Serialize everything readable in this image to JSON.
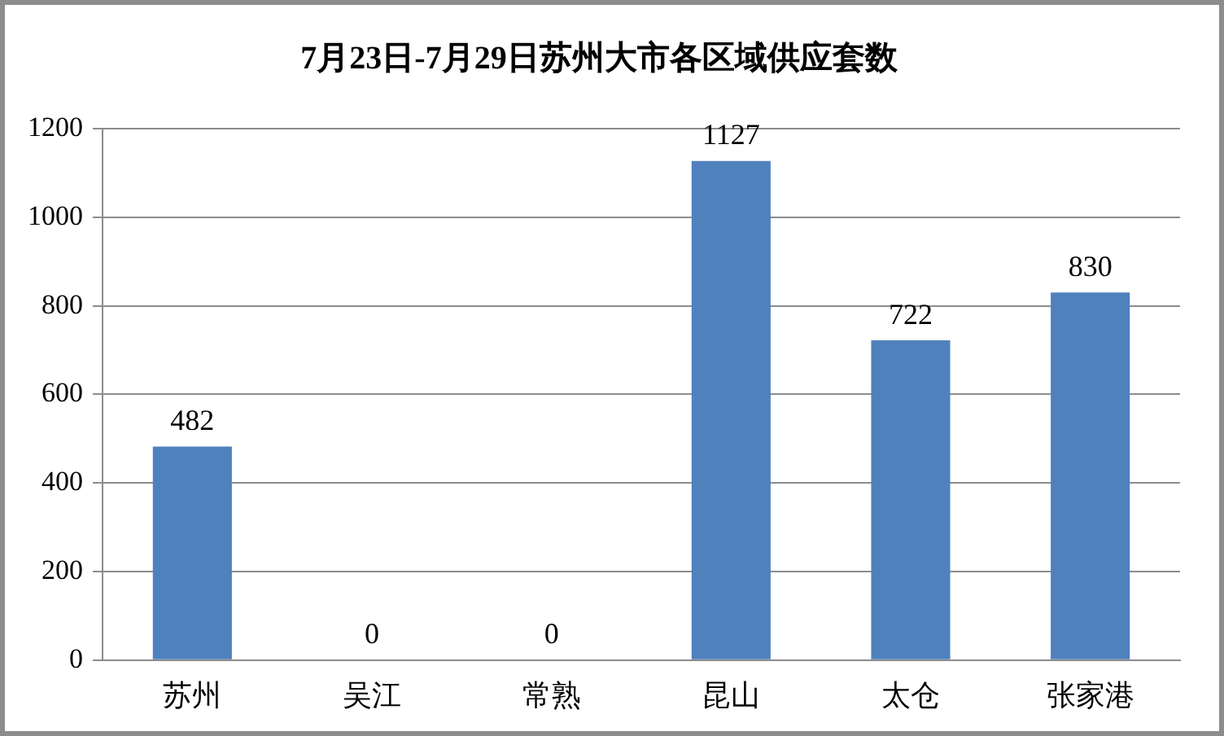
{
  "chart_data": {
    "type": "bar",
    "title": "7月23日-7月29日苏州大市各区域供应套数",
    "categories": [
      "苏州",
      "吴江",
      "常熟",
      "昆山",
      "太仓",
      "张家港"
    ],
    "values": [
      482,
      0,
      0,
      1127,
      722,
      830
    ],
    "color": "#4f81bd",
    "ylim": [
      0,
      1200
    ],
    "yticks": [
      0,
      200,
      400,
      600,
      800,
      1000,
      1200
    ],
    "grid": "y",
    "legend": false,
    "data_labels": true
  }
}
